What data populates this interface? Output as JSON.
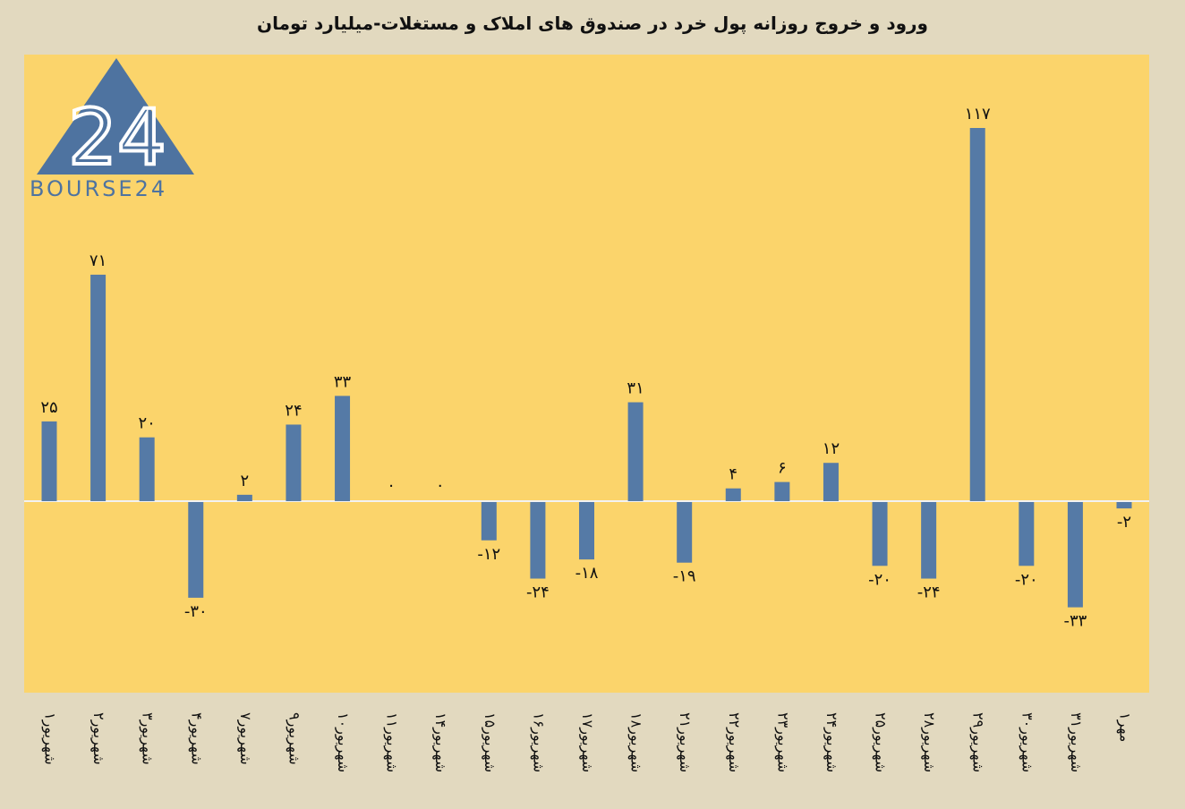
{
  "title": "ورود و خروج روزانه پول خرد در صندوق های املاک و مستغلات-میلیارد تومان",
  "logo": {
    "text": "BOURSE24",
    "mark": "24"
  },
  "colors": {
    "bar": "#557aa6",
    "plot_bg": "#fbd46b",
    "page_bg": "#e2d9bf",
    "zero_line": "#f2f2f2"
  },
  "chart_data": {
    "type": "bar",
    "title": "ورود و خروج روزانه پول خرد در صندوق های املاک و مستغلات-میلیارد تومان",
    "xlabel": "",
    "ylabel": "",
    "grid": false,
    "ylim": [
      -46,
      130
    ],
    "categories": [
      "۱شهریور",
      "۲شهریور",
      "۳شهریور",
      "۴شهریور",
      "۷شهریور",
      "۹شهریور",
      "۱۰شهریور",
      "۱۱شهریور",
      "۱۴شهریور",
      "۱۵شهریور",
      "۱۶شهریور",
      "۱۷شهریور",
      "۱۸شهریور",
      "۲۱شهریور",
      "۲۲شهریور",
      "۲۳شهریور",
      "۲۴شهریور",
      "۲۵شهریور",
      "۲۸شهریور",
      "۲۹شهریور",
      "۳۰شهریور",
      "۳۱شهریور",
      "۱مهر"
    ],
    "values": [
      25,
      71,
      20,
      -30,
      2,
      24,
      33,
      0,
      0,
      -12,
      -24,
      -18,
      31,
      -19,
      4,
      6,
      12,
      -20,
      -24,
      117,
      -20,
      -33,
      -2
    ],
    "data_labels": [
      "۲۵",
      "۷۱",
      "۲۰",
      "-۳۰",
      "۲",
      "۲۴",
      "۳۳",
      "۰",
      "۰",
      "-۱۲",
      "-۲۴",
      "-۱۸",
      "۳۱",
      "-۱۹",
      "۴",
      "۶",
      "۱۲",
      "-۲۰",
      "-۲۴",
      "۱۱۷",
      "-۲۰",
      "-۳۳",
      "-۲"
    ]
  }
}
